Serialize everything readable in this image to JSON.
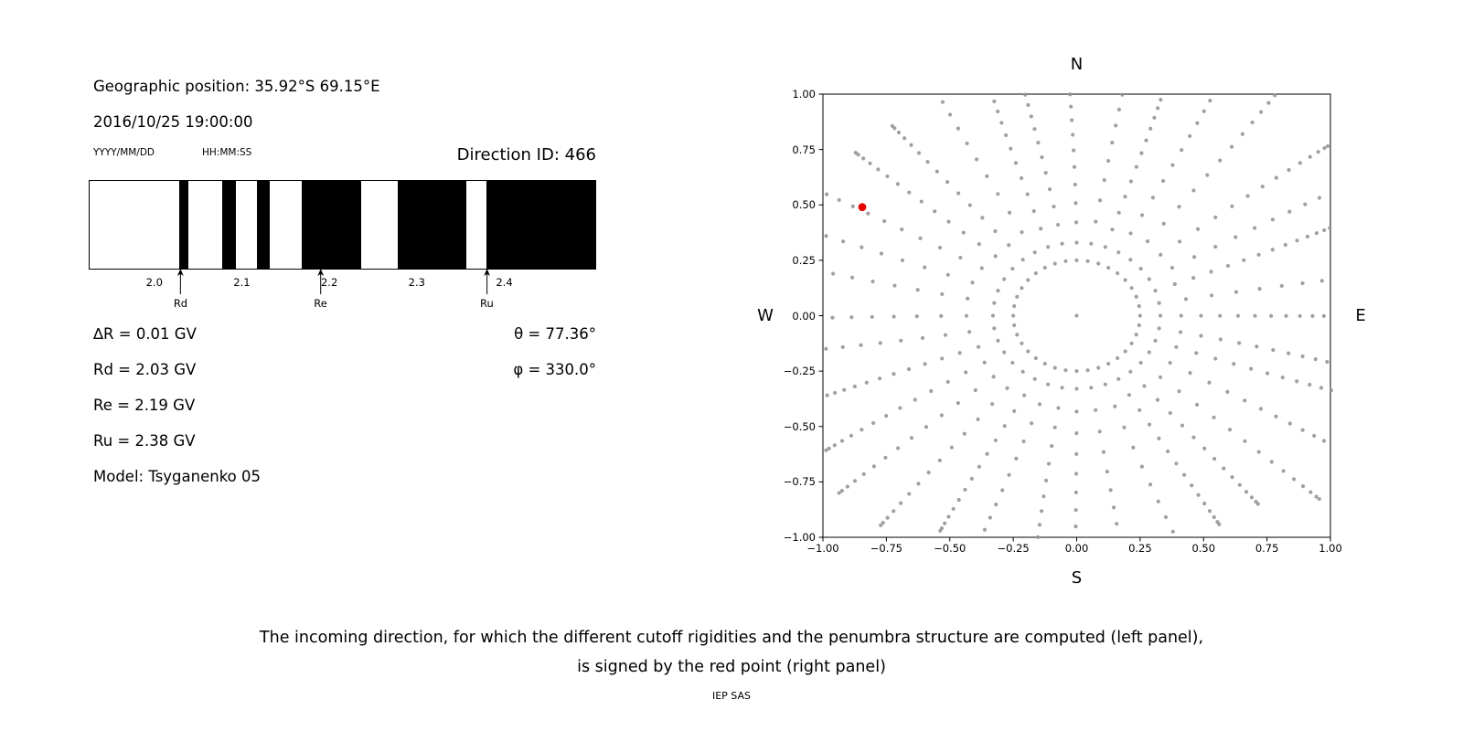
{
  "header": {
    "geo_position": "Geographic position: 35.92°S 69.15°E",
    "datetime": "2016/10/25 19:00:00",
    "date_format": "YYYY/MM/DD",
    "time_format": "HH:MM:SS",
    "direction_id": "Direction ID: 466"
  },
  "cutoff_params": {
    "delta_r": "∆R = 0.01 GV",
    "rd": "Rd = 2.03 GV",
    "re": "Re = 2.19 GV",
    "ru": "Ru = 2.38 GV",
    "model": "Model: Tsyganenko 05",
    "theta": "θ = 77.36°",
    "phi": "φ = 330.0°"
  },
  "caption": {
    "line1": "The incoming direction, for which the different cutoff rigidities and the penumbra structure are computed (left panel),",
    "line2": "is signed by the red point (right panel)",
    "credit": "IEP SAS"
  },
  "chart_data": [
    {
      "type": "bar",
      "name": "penumbra-structure",
      "description": "Barcode of forbidden (black) and allowed (white) rigidity intervals",
      "unit": "GV",
      "x_axis": {
        "min": 1.925,
        "max": 2.505,
        "ticks": [
          {
            "value": 2.0,
            "label": "2.0"
          },
          {
            "value": 2.1,
            "label": "2.1"
          },
          {
            "value": 2.2,
            "label": "2.2"
          },
          {
            "value": 2.3,
            "label": "2.3"
          },
          {
            "value": 2.4,
            "label": "2.4"
          }
        ]
      },
      "forbidden_bands_gv": [
        {
          "from": 2.028,
          "to": 2.038
        },
        {
          "from": 2.077,
          "to": 2.093
        },
        {
          "from": 2.117,
          "to": 2.132
        },
        {
          "from": 2.168,
          "to": 2.236
        },
        {
          "from": 2.278,
          "to": 2.357
        },
        {
          "from": 2.38,
          "to": 2.505
        }
      ],
      "markers": [
        {
          "label": "Rd",
          "value": 2.03
        },
        {
          "label": "Re",
          "value": 2.19
        },
        {
          "label": "Ru",
          "value": 2.38
        }
      ],
      "band_color": "#000000"
    },
    {
      "type": "scatter",
      "name": "incoming-direction-grid",
      "xlim": [
        -1,
        1
      ],
      "ylim": [
        -1,
        1
      ],
      "compass": {
        "top": "N",
        "bottom": "S",
        "left": "W",
        "right": "E"
      },
      "ticks": [
        {
          "value": -1,
          "label": "−1.00"
        },
        {
          "value": -0.75,
          "label": "−0.75"
        },
        {
          "value": -0.5,
          "label": "−0.50"
        },
        {
          "value": -0.25,
          "label": "−0.25"
        },
        {
          "value": 0,
          "label": "0.00"
        },
        {
          "value": 0.25,
          "label": "0.25"
        },
        {
          "value": 0.5,
          "label": "0.50"
        },
        {
          "value": 0.75,
          "label": "0.75"
        },
        {
          "value": 1,
          "label": "1.00"
        }
      ],
      "dot_color": "#8f8f8f",
      "dot_opacity": 0.85,
      "red_color": "#e50000",
      "grid_dots": {
        "spoke_count": 36,
        "angle_step_deg": 10,
        "r_start": 0.33,
        "points_per_spoke": 15,
        "ease": 1.55,
        "r_end_base": 1.2,
        "r_end_jitter": 0.12,
        "curve": 0.05,
        "inner_ring_radius": 0.25,
        "inner_ring_points": 36,
        "center_dot": true,
        "clip": 1.005
      },
      "red_point": {
        "x": -0.845,
        "y": 0.49
      }
    }
  ]
}
